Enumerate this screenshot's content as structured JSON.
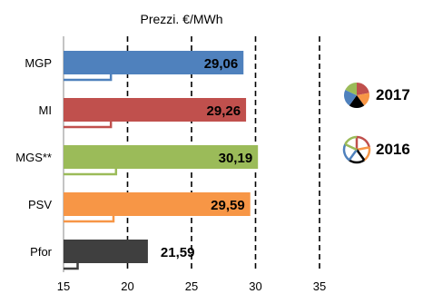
{
  "chart_data": {
    "type": "bar",
    "title": "Prezzi. €/MWh",
    "xlabel": "",
    "ylabel": "",
    "xlim": [
      15,
      35
    ],
    "x_ticks": [
      "15",
      "20",
      "25",
      "30",
      "35"
    ],
    "categories": [
      "MGP",
      "MI",
      "MGS**",
      "PSV",
      "Pfor"
    ],
    "series": [
      {
        "name": "2017",
        "values": [
          29.06,
          29.26,
          30.19,
          29.59,
          21.59
        ],
        "value_labels": [
          "29,06",
          "29,26",
          "30,19",
          "29,59",
          "21,59"
        ],
        "colors": [
          "#4f81bd",
          "#c0504d",
          "#9bbb59",
          "#f79646",
          "#3f3f3f"
        ]
      },
      {
        "name": "2016",
        "values": [
          18.7,
          18.7,
          19.1,
          18.9,
          16.1
        ],
        "colors": [
          "#4f81bd",
          "#c0504d",
          "#9bbb59",
          "#f79646",
          "#3f3f3f"
        ]
      }
    ],
    "grid": "vertical dashed at 20, 25, 30, 35",
    "legend": "right"
  },
  "legend": {
    "items": [
      {
        "label": "2017",
        "icon": "filled-pie-icon",
        "colors": [
          "#c0504d",
          "#f79646",
          "#000000",
          "#4f81bd",
          "#9bbb59"
        ]
      },
      {
        "label": "2016",
        "icon": "outline-pie-icon",
        "colors": [
          "#c0504d",
          "#f79646",
          "#000000",
          "#4f81bd",
          "#9bbb59"
        ]
      }
    ]
  }
}
